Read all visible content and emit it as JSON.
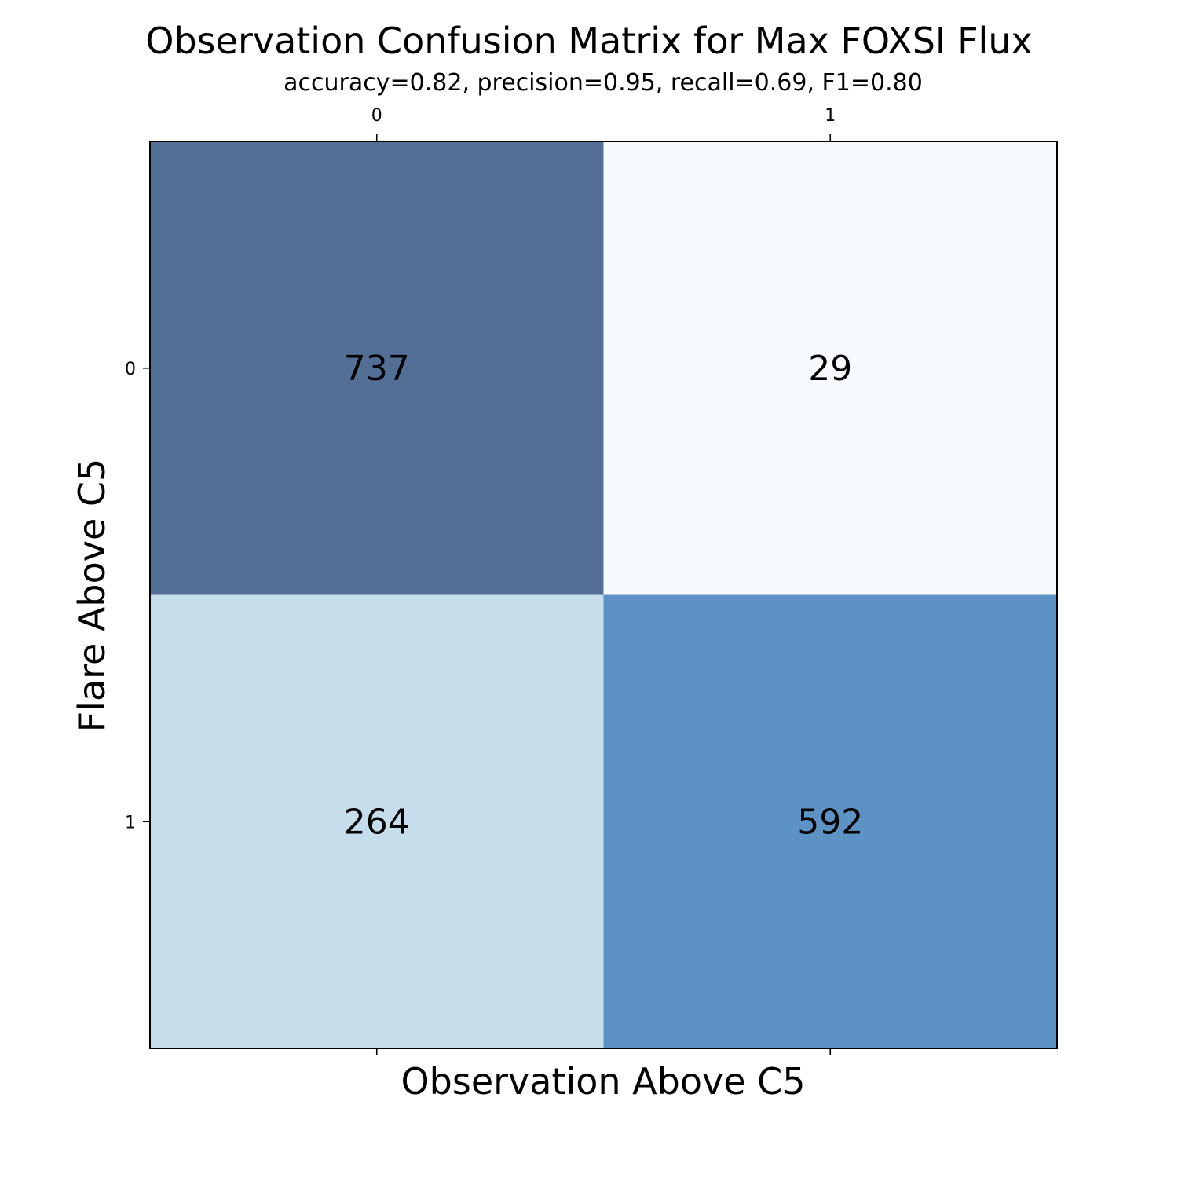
{
  "chart_data": {
    "type": "heatmap",
    "title": "Observation Confusion Matrix for Max FOXSI Flux",
    "subtitle": "accuracy=0.82, precision=0.95, recall=0.69, F1=0.80",
    "xlabel": "Observation Above C5",
    "ylabel": "Flare Above C5",
    "x_categories": [
      "0",
      "1"
    ],
    "y_categories": [
      "0",
      "1"
    ],
    "values": [
      [
        737,
        29
      ],
      [
        264,
        592
      ]
    ],
    "x_tick_position": "top",
    "grid": false,
    "colormap": "Blues",
    "cell_colors": [
      [
        "#536f96",
        "#f7fbff"
      ],
      [
        "#c6ddec",
        "#5d92c4"
      ]
    ]
  }
}
